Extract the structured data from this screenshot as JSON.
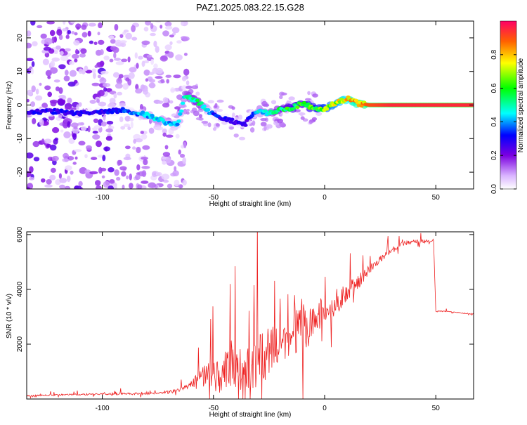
{
  "chart_data": [
    {
      "type": "heatmap",
      "title": "PAZ1.2025.083.22.15.G28",
      "xlabel": "Height of straight line (km)",
      "ylabel": "Frequency (Hz)",
      "xlim": [
        -134,
        67
      ],
      "ylim": [
        -25,
        25
      ],
      "xticks": [
        "-100",
        "-50",
        "0",
        "50"
      ],
      "yticks": [
        "20",
        "10",
        "0",
        "-10",
        "-20"
      ],
      "colorbar": {
        "label": "Normalized spectral amplitude",
        "range": [
          0,
          1
        ],
        "ticks": [
          "0.0",
          "0.2",
          "0.4",
          "0.6",
          "0.8"
        ]
      },
      "ridge": {
        "x": [
          -130,
          -120,
          -110,
          -100,
          -90,
          -80,
          -72,
          -66,
          -63,
          -57,
          -50,
          -45,
          -40,
          -36,
          -33,
          -30,
          -25,
          -20,
          -15,
          -10,
          -5,
          0,
          5,
          10,
          15,
          20,
          30,
          40,
          50,
          60,
          67
        ],
        "frequency": [
          -2,
          -2,
          -2.5,
          -2,
          -1.5,
          -3,
          -5,
          -6,
          3,
          1,
          -3,
          -4,
          -5,
          -6,
          -3,
          -2,
          -2.5,
          -1.5,
          -1,
          0.5,
          -1,
          -1,
          0.5,
          2,
          0.5,
          0,
          0,
          0,
          0,
          0,
          0
        ],
        "amplitude": [
          0.3,
          0.3,
          0.3,
          0.3,
          0.35,
          0.45,
          0.45,
          0.4,
          0.5,
          0.55,
          0.35,
          0.3,
          0.3,
          0.25,
          0.35,
          0.45,
          0.5,
          0.55,
          0.6,
          0.6,
          0.65,
          0.7,
          0.75,
          0.8,
          0.85,
          0.9,
          0.95,
          0.95,
          0.95,
          0.95,
          0.95
        ]
      }
    },
    {
      "type": "line",
      "xlabel": "Height of straight line (km)",
      "ylabel": "SNR (10 * v/v)",
      "xlim": [
        -134,
        67
      ],
      "ylim": [
        0,
        6100
      ],
      "xticks": [
        "-100",
        "-50",
        "0",
        "50"
      ],
      "yticks": [
        "2000",
        "4000",
        "6000"
      ],
      "color": "#ee2222",
      "envelope": {
        "x": [
          -134,
          -120,
          -100,
          -80,
          -70,
          -65,
          -60,
          -55,
          -50,
          -45,
          -40,
          -35,
          -30,
          -25,
          -20,
          -15,
          -10,
          -5,
          0,
          5,
          10,
          15,
          20,
          25,
          30,
          35,
          40,
          45,
          49,
          50,
          55,
          60,
          67
        ],
        "base": [
          120,
          150,
          180,
          200,
          250,
          350,
          550,
          700,
          850,
          950,
          1050,
          1100,
          1400,
          1700,
          2000,
          2300,
          2650,
          2950,
          3150,
          3500,
          3900,
          4300,
          4700,
          5100,
          5400,
          5650,
          5750,
          5750,
          5800,
          3200,
          3200,
          3150,
          3100
        ],
        "spike": [
          80,
          90,
          110,
          140,
          180,
          250,
          400,
          1600,
          2200,
          2800,
          2900,
          2300,
          3800,
          3600,
          1800,
          1900,
          3600,
          1700,
          1600,
          1400,
          1300,
          900,
          600,
          400,
          350,
          300,
          250,
          200,
          150,
          60,
          60,
          60,
          60
        ]
      }
    }
  ]
}
